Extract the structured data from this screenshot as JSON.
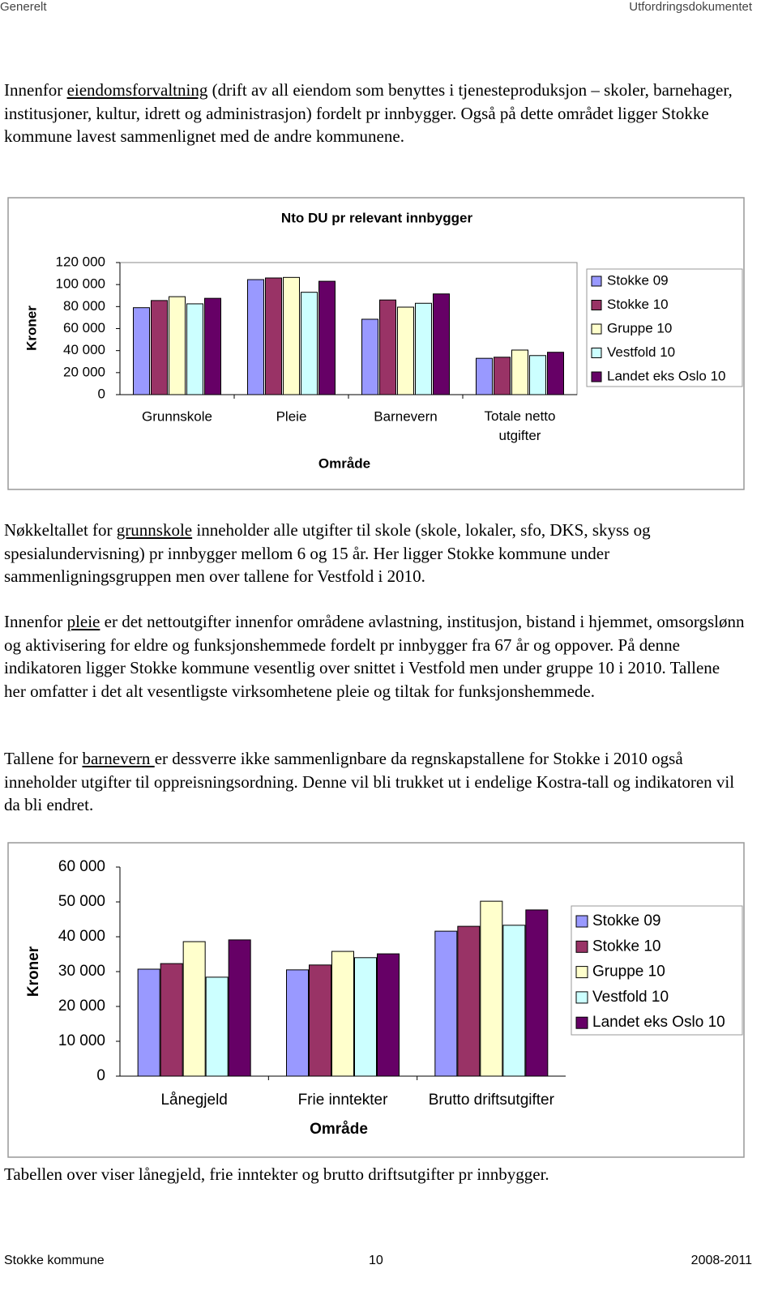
{
  "header": {
    "left": "Generelt",
    "right": "Utfordringsdokumentet"
  },
  "paragraphs": [
    {
      "before": "Innenfor ",
      "link": "eiendomsforvaltning",
      "after": " (drift av all eiendom som benyttes i tjenesteproduksjon – skoler, barnehager, institusjoner, kultur, idrett og administrasjon) fordelt pr innbygger. Også på dette området ligger Stokke kommune lavest sammenlignet med de andre kommunene."
    },
    {
      "before": "Nøkkeltallet for ",
      "link": "grunnskole",
      "after": " inneholder alle utgifter til skole (skole, lokaler, sfo, DKS, skyss og spesialundervisning) pr innbygger mellom 6 og 15 år. Her ligger Stokke kommune under sammenligningsgruppen men over tallene for Vestfold i 2010."
    },
    {
      "before": "Innenfor ",
      "link": "pleie",
      "after": " er det nettoutgifter innenfor områdene avlastning, institusjon, bistand i hjemmet, omsorgslønn og aktivisering for eldre og funksjonshemmede fordelt pr innbygger fra 67 år og oppover. På denne indikatoren ligger Stokke kommune vesentlig over snittet i Vestfold men under gruppe 10 i 2010. Tallene her omfatter i det alt vesentligste virksomhetene pleie og tiltak for funksjonshemmede."
    },
    {
      "before": "Tallene for ",
      "link": "barnevern ",
      "after": " er dessverre ikke sammenlignbare da regnskapstallene for Stokke i 2010 også inneholder utgifter til oppreisningsordning. Denne vil bli trukket ut i endelige Kostra-tall og indikatoren vil da bli endret."
    }
  ],
  "caption": "Tabellen over viser lånegjeld, frie inntekter og brutto driftsutgifter pr innbygger.",
  "chart_data": [
    {
      "type": "bar",
      "title": "Nto DU pr relevant innbygger",
      "x_label": "Område",
      "y_label": "Kroner",
      "legend": "right",
      "categories": [
        "Grunnskole",
        "Pleie",
        "Barnevern",
        "Totale netto utgifter"
      ],
      "series": [
        {
          "name": "Stokke 09",
          "color": "#9999ff",
          "values": [
            79000,
            104500,
            68500,
            33000
          ]
        },
        {
          "name": "Stokke 10",
          "color": "#993366",
          "values": [
            85500,
            106000,
            86000,
            34000
          ]
        },
        {
          "name": "Gruppe 10",
          "color": "#ffffcc",
          "values": [
            89000,
            106500,
            79500,
            40500
          ]
        },
        {
          "name": "Vestfold 10",
          "color": "#ccffff",
          "values": [
            82500,
            93000,
            83000,
            35500
          ]
        },
        {
          "name": "Landet eks Oslo 10",
          "color": "#660066",
          "values": [
            87500,
            103000,
            91500,
            38500
          ]
        }
      ],
      "ylim": [
        0,
        120000
      ],
      "yticks": [
        0,
        {
          "value": 20000,
          "label": "20 000"
        },
        {
          "value": 40000,
          "label": "40 000"
        },
        {
          "value": 60000,
          "label": "60 000"
        },
        {
          "value": 80000,
          "label": "80 000"
        },
        {
          "value": 100000,
          "label": "100 000"
        },
        {
          "value": 120000,
          "label": "120 000"
        }
      ]
    },
    {
      "type": "bar",
      "x_label": "Område",
      "y_label": "Kroner",
      "legend": "right",
      "categories": [
        "Lånegjeld",
        "Frie inntekter",
        "Brutto driftsutgifter"
      ],
      "series": [
        {
          "name": "Stokke 09",
          "color": "#9999ff",
          "values": [
            30700,
            30500,
            41600
          ]
        },
        {
          "name": "Stokke 10",
          "color": "#993366",
          "values": [
            32300,
            31900,
            43000
          ]
        },
        {
          "name": "Gruppe 10",
          "color": "#ffffcc",
          "values": [
            38600,
            35800,
            50200
          ]
        },
        {
          "name": "Vestfold 10",
          "color": "#ccffff",
          "values": [
            28400,
            34000,
            43300
          ]
        },
        {
          "name": "Landet eks Oslo 10",
          "color": "#660066",
          "values": [
            39100,
            35100,
            47700
          ]
        }
      ],
      "ylim": [
        0,
        60000
      ],
      "yticks": [
        0,
        {
          "value": 10000,
          "label": "10 000"
        },
        {
          "value": 20000,
          "label": "20 000"
        },
        {
          "value": 30000,
          "label": "30 000"
        },
        {
          "value": 40000,
          "label": "40 000"
        },
        {
          "value": 50000,
          "label": "50 000"
        },
        {
          "value": 60000,
          "label": "60 000"
        }
      ]
    }
  ],
  "footer": {
    "left": "Stokke kommune",
    "center": "10",
    "right": "2008-2011"
  }
}
